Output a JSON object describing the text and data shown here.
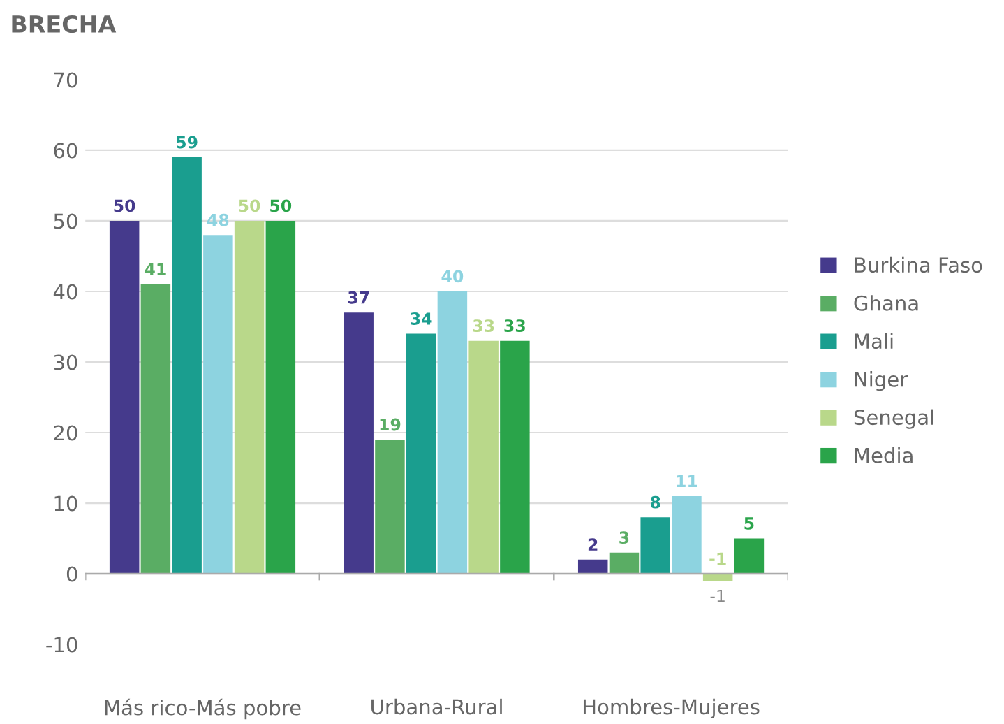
{
  "chart_data": {
    "type": "bar",
    "title": "BRECHA",
    "categories": [
      "Más rico-Más pobre",
      "Urbana-Rural",
      "Hombres-Mujeres"
    ],
    "series": [
      {
        "name": "Burkina Faso",
        "color": "#453a8c",
        "values": [
          50,
          37,
          2
        ]
      },
      {
        "name": "Ghana",
        "color": "#5aad64",
        "values": [
          41,
          19,
          3
        ]
      },
      {
        "name": "Mali",
        "color": "#1a9e8f",
        "values": [
          59,
          34,
          8
        ]
      },
      {
        "name": "Niger",
        "color": "#8dd3e0",
        "values": [
          48,
          40,
          11
        ]
      },
      {
        "name": "Senegal",
        "color": "#b9d88a",
        "values": [
          50,
          33,
          -1
        ]
      },
      {
        "name": "Media",
        "color": "#2aa44a",
        "values": [
          50,
          33,
          5
        ]
      }
    ],
    "ylim": [
      -10,
      70
    ],
    "yticks": [
      -10,
      0,
      10,
      20,
      30,
      40,
      50,
      60,
      70
    ],
    "grid": "y",
    "legend": "right",
    "data_labels": true,
    "annotations": [
      "-1"
    ]
  }
}
